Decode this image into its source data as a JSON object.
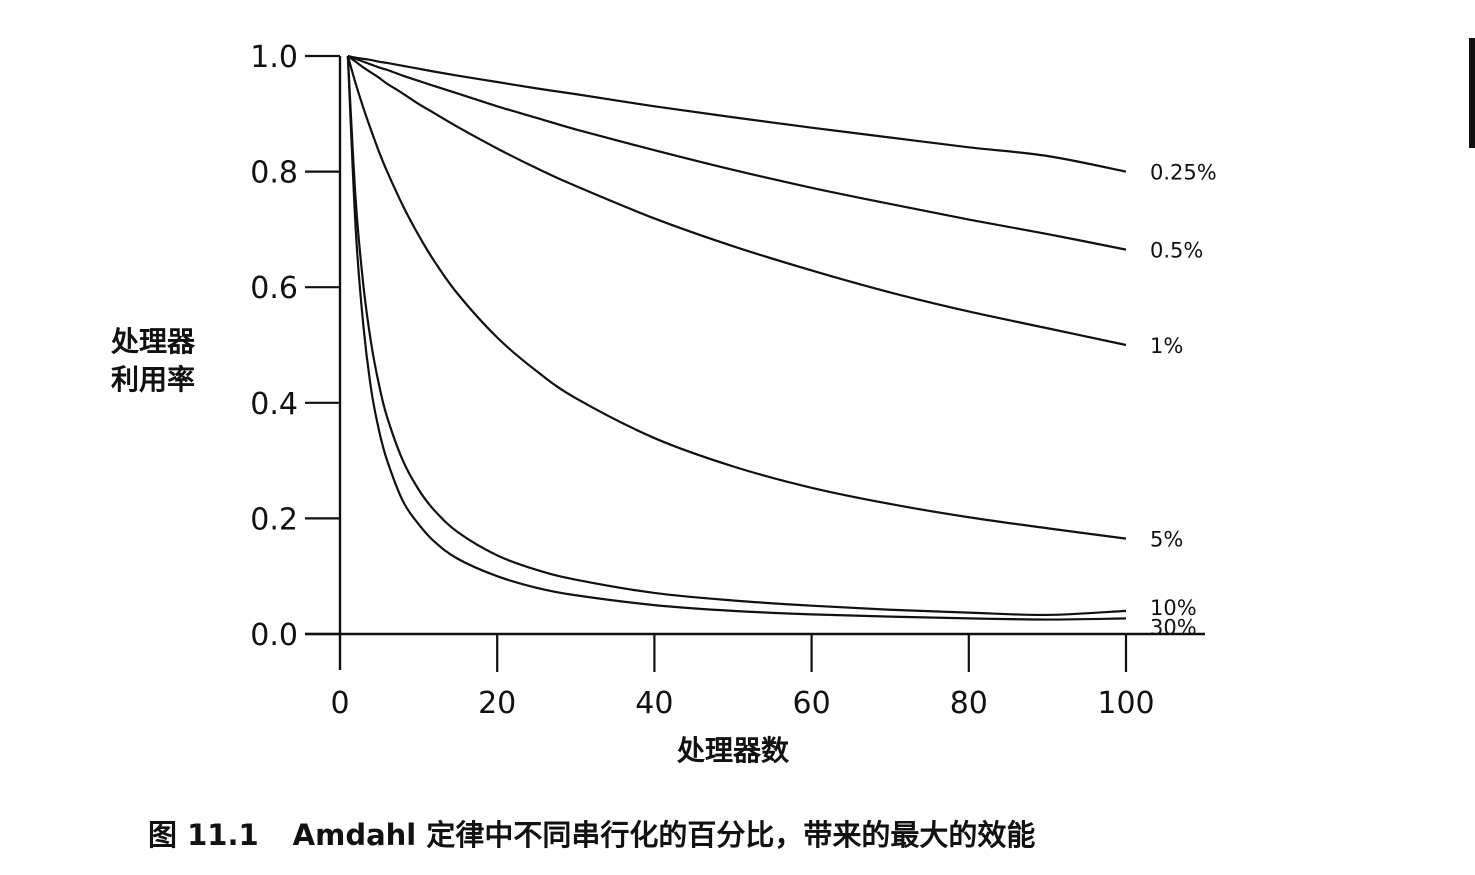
{
  "chart_data": {
    "type": "line",
    "title": "",
    "xlabel": "处理器数",
    "ylabel_lines": [
      "处理器",
      "利用率"
    ],
    "xlim": [
      0,
      100
    ],
    "ylim": [
      0,
      1.0
    ],
    "x_ticks": [
      "0",
      "20",
      "40",
      "60",
      "80",
      "100"
    ],
    "y_ticks": [
      "0.0",
      "0.2",
      "0.4",
      "0.6",
      "0.8",
      "1.0"
    ],
    "x_tick_values": [
      0,
      20,
      40,
      60,
      80,
      100
    ],
    "y_tick_values": [
      0,
      0.2,
      0.4,
      0.6,
      0.8,
      1.0
    ],
    "x": [
      1,
      2,
      3,
      4,
      5,
      6,
      8,
      10,
      12,
      15,
      20,
      25,
      30,
      40,
      50,
      60,
      70,
      80,
      90,
      100
    ],
    "series": [
      {
        "name": "0.25%",
        "values": [
          1.0,
          0.997,
          0.995,
          0.993,
          0.99,
          0.988,
          0.983,
          0.978,
          0.973,
          0.966,
          0.955,
          0.944,
          0.934,
          0.913,
          0.894,
          0.876,
          0.859,
          0.842,
          0.827,
          0.8
        ]
      },
      {
        "name": "0.5%",
        "values": [
          1.0,
          0.995,
          0.99,
          0.985,
          0.98,
          0.976,
          0.966,
          0.957,
          0.948,
          0.935,
          0.913,
          0.893,
          0.873,
          0.837,
          0.803,
          0.772,
          0.744,
          0.717,
          0.692,
          0.665
        ]
      },
      {
        "name": "1%",
        "values": [
          1.0,
          0.99,
          0.98,
          0.971,
          0.962,
          0.952,
          0.935,
          0.917,
          0.901,
          0.877,
          0.84,
          0.806,
          0.775,
          0.719,
          0.671,
          0.629,
          0.591,
          0.558,
          0.529,
          0.5
        ]
      },
      {
        "name": "5%",
        "values": [
          1.0,
          0.952,
          0.909,
          0.87,
          0.833,
          0.8,
          0.741,
          0.69,
          0.645,
          0.588,
          0.513,
          0.455,
          0.408,
          0.339,
          0.29,
          0.253,
          0.225,
          0.202,
          0.183,
          0.165
        ]
      },
      {
        "name": "10%",
        "values": [
          1.0,
          0.75,
          0.6,
          0.5,
          0.429,
          0.375,
          0.3,
          0.25,
          0.214,
          0.176,
          0.136,
          0.111,
          0.094,
          0.071,
          0.058,
          0.049,
          0.042,
          0.037,
          0.033,
          0.04
        ]
      },
      {
        "name": "30%",
        "values": [
          1.0,
          0.7,
          0.53,
          0.42,
          0.35,
          0.3,
          0.23,
          0.19,
          0.16,
          0.13,
          0.1,
          0.08,
          0.067,
          0.05,
          0.04,
          0.034,
          0.03,
          0.027,
          0.025,
          0.027
        ]
      }
    ],
    "legend_placement": "labels at right end of each curve",
    "grid": false
  },
  "caption": {
    "number": "图 11.1",
    "text": "Amdahl 定律中不同串行化的百分比，带来的最大的效能"
  }
}
